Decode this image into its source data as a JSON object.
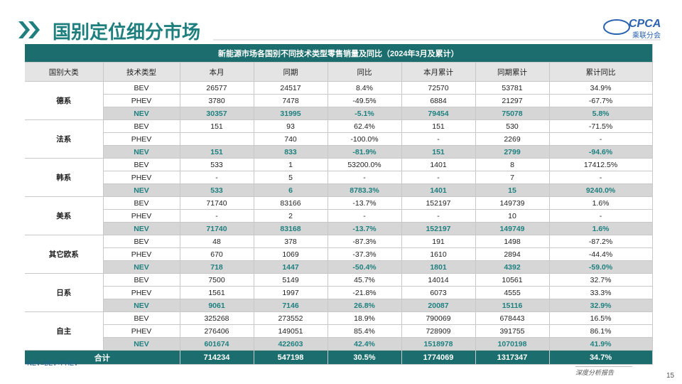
{
  "header": {
    "title": "国别定位细分市场",
    "logo": "CPCA",
    "logo_sub": "乘联分会"
  },
  "table": {
    "title": "新能源市场各国别不同技术类型零售销量及同比（2024年3月及累计）",
    "columns": [
      "国别大类",
      "技术类型",
      "本月",
      "同期",
      "同比",
      "本月累计",
      "同期累计",
      "累计同比"
    ],
    "groups": [
      {
        "name": "德系",
        "rows": [
          [
            "BEV",
            "26577",
            "24517",
            "8.4%",
            "72570",
            "53781",
            "34.9%"
          ],
          [
            "PHEV",
            "3780",
            "7478",
            "-49.5%",
            "6884",
            "21297",
            "-67.7%"
          ],
          [
            "NEV",
            "30357",
            "31995",
            "-5.1%",
            "79454",
            "75078",
            "5.8%"
          ]
        ]
      },
      {
        "name": "法系",
        "rows": [
          [
            "BEV",
            "151",
            "93",
            "62.4%",
            "151",
            "530",
            "-71.5%"
          ],
          [
            "PHEV",
            null,
            "740",
            "-100.0%",
            "-",
            "2269",
            "-"
          ],
          [
            "NEV",
            "151",
            "833",
            "-81.9%",
            "151",
            "2799",
            "-94.6%"
          ]
        ]
      },
      {
        "name": "韩系",
        "rows": [
          [
            "BEV",
            "533",
            "1",
            "53200.0%",
            "1401",
            "8",
            "17412.5%"
          ],
          [
            "PHEV",
            "-",
            "5",
            "-",
            "-",
            "7",
            "-"
          ],
          [
            "NEV",
            "533",
            "6",
            "8783.3%",
            "1401",
            "15",
            "9240.0%"
          ]
        ]
      },
      {
        "name": "美系",
        "rows": [
          [
            "BEV",
            "71740",
            "83166",
            "-13.7%",
            "152197",
            "149739",
            "1.6%"
          ],
          [
            "PHEV",
            "-",
            "2",
            "-",
            "-",
            "10",
            "-"
          ],
          [
            "NEV",
            "71740",
            "83168",
            "-13.7%",
            "152197",
            "149749",
            "1.6%"
          ]
        ]
      },
      {
        "name": "其它欧系",
        "rows": [
          [
            "BEV",
            "48",
            "378",
            "-87.3%",
            "191",
            "1498",
            "-87.2%"
          ],
          [
            "PHEV",
            "670",
            "1069",
            "-37.3%",
            "1610",
            "2894",
            "-44.4%"
          ],
          [
            "NEV",
            "718",
            "1447",
            "-50.4%",
            "1801",
            "4392",
            "-59.0%"
          ]
        ]
      },
      {
        "name": "日系",
        "rows": [
          [
            "BEV",
            "7500",
            "5149",
            "45.7%",
            "14014",
            "10561",
            "32.7%"
          ],
          [
            "PHEV",
            "1561",
            "1997",
            "-21.8%",
            "6073",
            "4555",
            "33.3%"
          ],
          [
            "NEV",
            "9061",
            "7146",
            "26.8%",
            "20087",
            "15116",
            "32.9%"
          ]
        ]
      },
      {
        "name": "自主",
        "rows": [
          [
            "BEV",
            "325268",
            "273552",
            "18.9%",
            "790069",
            "678443",
            "16.5%"
          ],
          [
            "PHEV",
            "276406",
            "149051",
            "85.4%",
            "728909",
            "391755",
            "86.1%"
          ],
          [
            "NEV",
            "601674",
            "422603",
            "42.4%",
            "1518978",
            "1070198",
            "41.9%"
          ]
        ]
      }
    ],
    "total": [
      "合计",
      "714234",
      "547198",
      "30.5%",
      "1774069",
      "1317347",
      "34.7%"
    ]
  },
  "footnote": "*NEV=BEV+PHEV",
  "footer": {
    "report": "深度分析报告",
    "page": "15"
  }
}
